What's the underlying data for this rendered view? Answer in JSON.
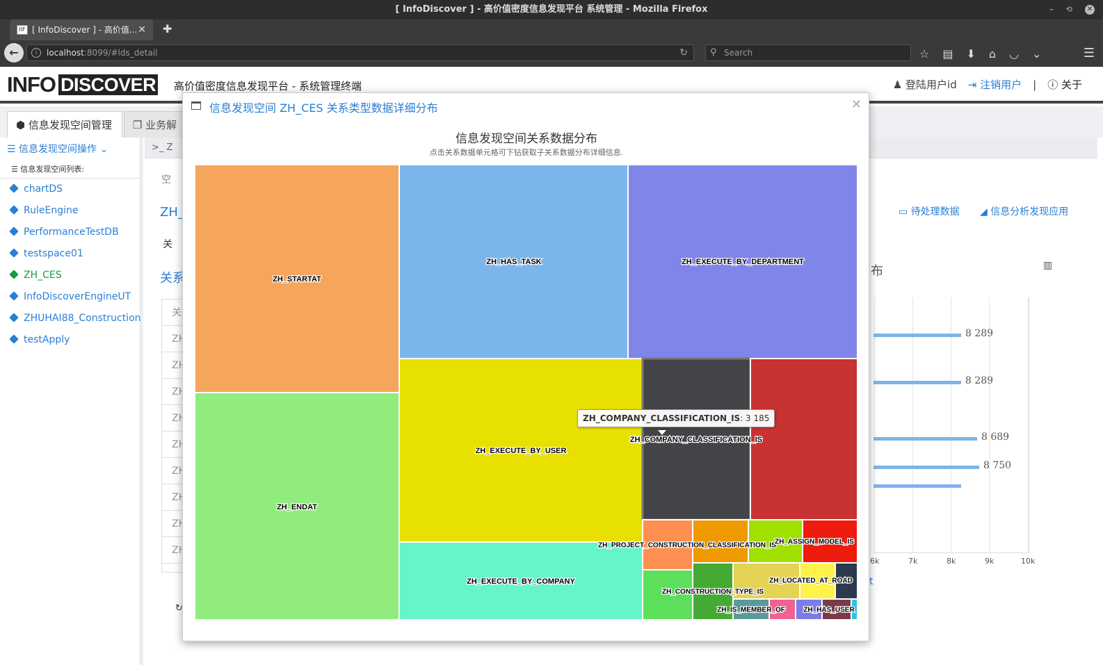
{
  "window": {
    "title": "[ InfoDiscover ] - 高价值密度信息发现平台 系统管理 - Mozilla Firefox"
  },
  "browser": {
    "tab_title": "[ InfoDiscover ] - 高价值...",
    "url_host": "localhost",
    "url_rest": ":8099/#lds_detail",
    "search_placeholder": "Search"
  },
  "header": {
    "logo_left": "INFO",
    "logo_right": "DISCOVER",
    "title": "高价值密度信息发现平台 - 系统管理终端",
    "user_id": "登陆用户id",
    "logout": "注销用户",
    "separator": "|",
    "about": "关于"
  },
  "main_tabs": [
    {
      "label": "信息发现空间管理"
    },
    {
      "label": "业务解"
    }
  ],
  "sidebar": {
    "ops": "信息发现空间操作",
    "list_title": "信息发现空间列表:",
    "items": [
      {
        "label": "chartDS"
      },
      {
        "label": "RuleEngine"
      },
      {
        "label": "PerformanceTestDB"
      },
      {
        "label": "testspace01"
      },
      {
        "label": "ZH_CES"
      },
      {
        "label": "InfoDiscoverEngineUT"
      },
      {
        "label": "ZHUHAI88_Construction"
      },
      {
        "label": "testApply"
      }
    ]
  },
  "background": {
    "crumb": ">_ Z",
    "frag_space": "空",
    "frag_zh": "ZH_",
    "frag_tab": "关",
    "frag_rel": "关系",
    "pending": "待处理数据",
    "apps": "信息分析发现应用",
    "chart_frag": "布",
    "left_col": [
      "关",
      "ZH",
      "ZH",
      "ZH",
      "ZH",
      "ZH",
      "ZH",
      "ZH",
      "ZH",
      "ZH"
    ],
    "bar_labels": [
      "8 289",
      "8 289",
      "8 689",
      "8 750"
    ],
    "x_ticks": [
      "6k",
      "7k",
      "8k",
      "9k",
      "10k"
    ],
    "trail": "t"
  },
  "modal": {
    "title": "信息发现空间 ZH_CES 关系类型数据详细分布",
    "chart_title": "信息发现空间关系数据分布",
    "chart_subtitle": "点击关系数据单元格可下钻获取子关系数据分布详细信息.",
    "tooltip_name": "ZH_COMPANY_CLASSIFICATION_IS",
    "tooltip_value": "3 185"
  },
  "chart_data": {
    "type": "treemap",
    "title": "信息发现空间关系数据分布",
    "subtitle": "点击关系数据单元格可下钻获取子关系数据分布详细信息.",
    "hovered": {
      "name": "ZH_COMPANY_CLASSIFICATION_IS",
      "value": 3185
    },
    "items": [
      {
        "name": "ZH_STARTAT",
        "color": "#f5a55c"
      },
      {
        "name": "ZH_ENDAT",
        "color": "#90ed7d"
      },
      {
        "name": "ZH_HAS_TASK",
        "color": "#7cb5ec"
      },
      {
        "name": "ZH_EXECUTE_BY_DEPARTMENT",
        "color": "#8085e9"
      },
      {
        "name": "ZH_EXECUTE_BY_USER",
        "color": "#e8e000"
      },
      {
        "name": "ZH_COMPANY_CLASSIFICATION_IS",
        "value": 3185,
        "color": "#434348"
      },
      {
        "name": "",
        "color": "#c83232"
      },
      {
        "name": "ZH_EXECUTE_BY_COMPANY",
        "color": "#66f5c8"
      },
      {
        "name": "ZH_PROJECT_CONSTRUCTION_CLASSIFICATION_IS",
        "color": "#ff8f50"
      },
      {
        "name": "",
        "color": "#ee9a00"
      },
      {
        "name": "",
        "color": "#a2e000"
      },
      {
        "name": "ZH_ASSIGN_MODEL_IS",
        "color": "#ee1c0c"
      },
      {
        "name": "ZH_CONSTRUCTION_TYPE_IS",
        "color": "#5ce05c"
      },
      {
        "name": "",
        "color": "#44aa33"
      },
      {
        "name": "",
        "color": "#e4d354"
      },
      {
        "name": "ZH_LOCATED_AT_ROAD",
        "color": "#fff24a"
      },
      {
        "name": "",
        "color": "#2b3a4d"
      },
      {
        "name": "ZH_IS_MEMBER_OF",
        "color": "#5a9a9a"
      },
      {
        "name": "",
        "color": "#f06292"
      },
      {
        "name": "ZH_HAS_USER",
        "color": "#7b7bea"
      },
      {
        "name": "",
        "color": "#7b3a4a"
      },
      {
        "name": "",
        "color": "#2ec4e0"
      }
    ]
  }
}
